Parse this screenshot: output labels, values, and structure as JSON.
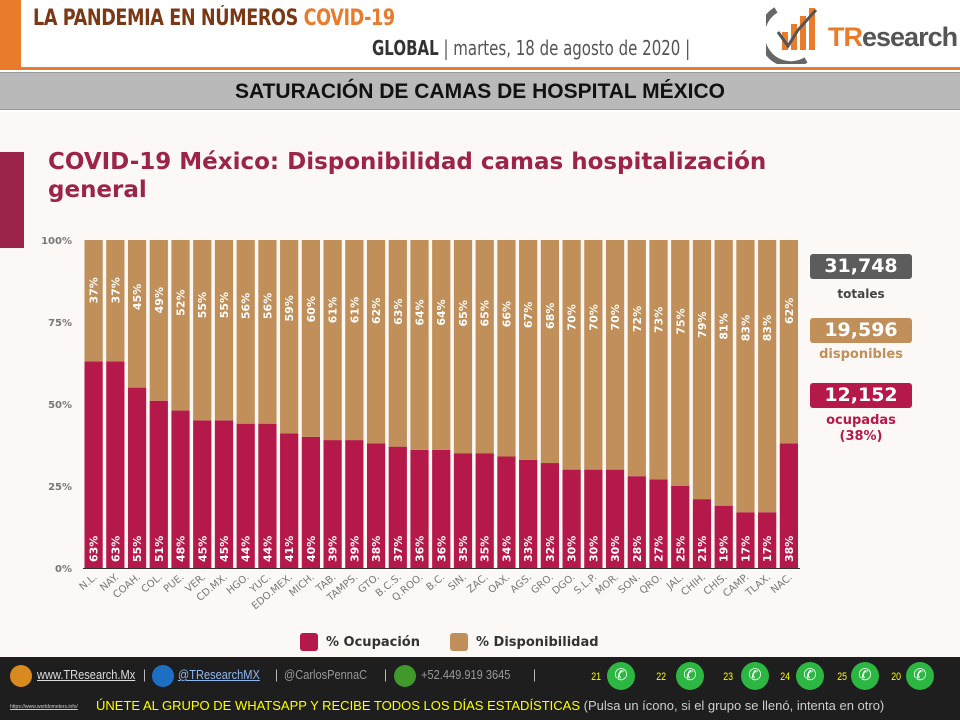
{
  "header": {
    "title": "LA PANDEMIA EN NÚMEROS",
    "title_accent": "COVID-19",
    "scope": "GLOBAL",
    "date": "martes, 18 de agosto de 2020",
    "separator": "|",
    "logo_text": "TResearch"
  },
  "banner": {
    "title": "SATURACIÓN DE CAMAS DE HOSPITAL MÉXICO"
  },
  "colors": {
    "ocupacion": "#b5194a",
    "disponibilidad": "#c08f5a",
    "brand_orange": "#e87b2c",
    "title_maroon": "#9d2449",
    "total_box": "#5c5c5c"
  },
  "chart_data": {
    "type": "bar",
    "stacked": true,
    "title": "COVID-19 México: Disponibilidad camas hospitalización general",
    "categories": [
      "N.L.",
      "NAY.",
      "COAH.",
      "COL.",
      "PUE.",
      "VER.",
      "CD.MX.",
      "HGO.",
      "YUC.",
      "EDO.MEX.",
      "MICH.",
      "TAB.",
      "TAMPS.",
      "GTO.",
      "B.C.S.",
      "Q.ROO.",
      "B.C.",
      "SIN.",
      "ZAC.",
      "OAX.",
      "AGS.",
      "GRO.",
      "DGO.",
      "S.L.P.",
      "MOR.",
      "SON.",
      "QRO.",
      "JAL.",
      "CHIH.",
      "CHIS.",
      "CAMP.",
      "TLAX.",
      "NAC."
    ],
    "series": [
      {
        "name": "% Ocupación",
        "values": [
          63,
          63,
          55,
          51,
          48,
          45,
          45,
          44,
          44,
          41,
          40,
          39,
          39,
          38,
          37,
          36,
          36,
          35,
          35,
          34,
          33,
          32,
          30,
          30,
          30,
          28,
          27,
          25,
          21,
          19,
          17,
          17,
          38
        ]
      },
      {
        "name": "% Disponibilidad",
        "values": [
          37,
          37,
          45,
          49,
          52,
          55,
          55,
          56,
          56,
          59,
          60,
          61,
          61,
          62,
          63,
          64,
          64,
          65,
          65,
          66,
          67,
          68,
          70,
          70,
          70,
          72,
          73,
          75,
          79,
          81,
          83,
          83,
          62
        ]
      }
    ],
    "yticks": [
      "0%",
      "25%",
      "50%",
      "75%",
      "100%"
    ],
    "ylim": [
      0,
      100
    ],
    "legend_position": "bottom",
    "grid": false
  },
  "summary": {
    "total_value": "31,748",
    "total_label": "totales",
    "available_value": "19,596",
    "available_label": "disponibles",
    "occupied_value": "12,152",
    "occupied_label": "ocupadas",
    "occupied_pct": "(38%)"
  },
  "footer": {
    "website": "www.TResearch.Mx",
    "twitter": "@TResearchMX",
    "twitter2": "@CarlosPennaC",
    "phone": "+52.449.919 3645",
    "groups": [
      "21",
      "22",
      "23",
      "24",
      "25",
      "20"
    ],
    "join_text": "ÚNETE AL GRUPO DE WHATSAPP Y RECIBE TODOS LOS DÍAS ESTADÍSTICAS",
    "join_note": "(Pulsa un ícono, si el grupo se llenó, intenta en otro)",
    "small_url": "https://www.worldometers.info/"
  }
}
